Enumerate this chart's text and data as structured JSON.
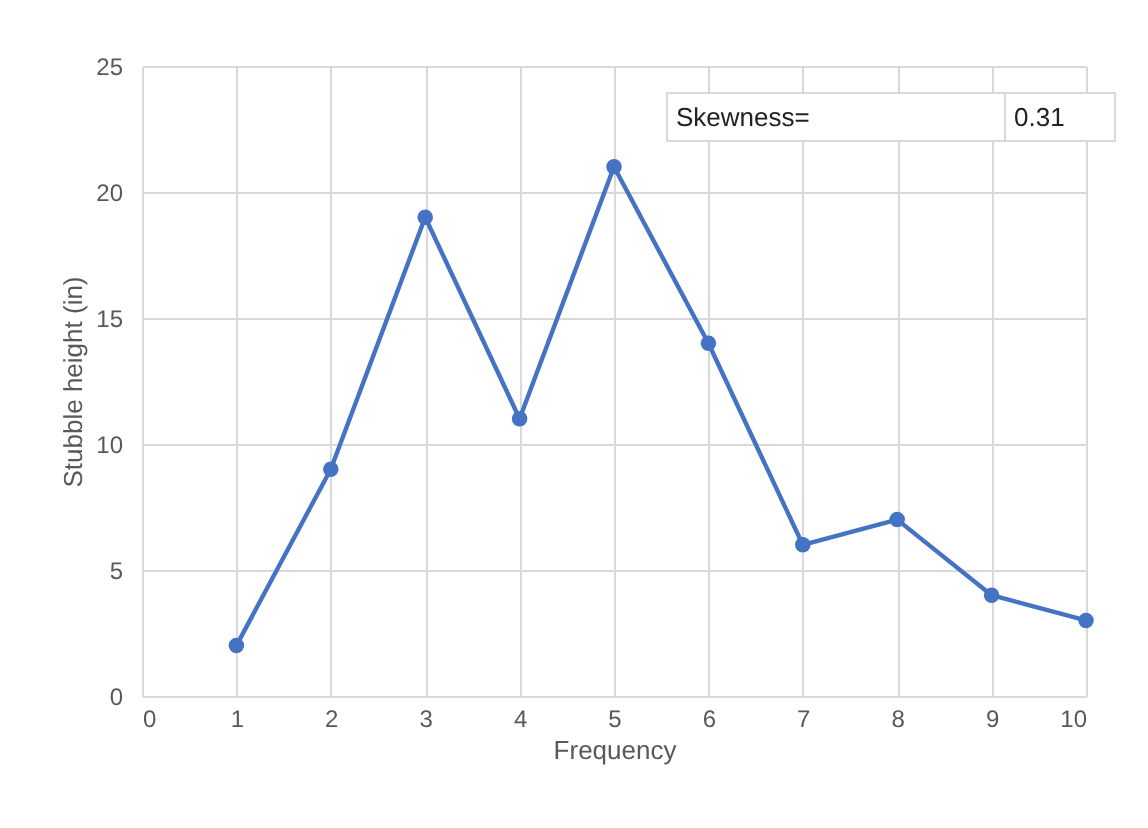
{
  "chart_data": {
    "type": "line",
    "xlabel": "Frequency",
    "ylabel": "Stubble height (in)",
    "x": [
      1,
      2,
      3,
      4,
      5,
      6,
      7,
      8,
      9,
      10
    ],
    "series": [
      {
        "color": "#4472c4",
        "values": [
          2,
          9,
          19,
          11,
          21,
          14,
          6,
          7,
          4,
          3
        ]
      }
    ],
    "xlim": [
      0,
      10
    ],
    "xticks": [
      0,
      1,
      2,
      3,
      4,
      5,
      6,
      7,
      8,
      9,
      10
    ],
    "ylim": [
      0,
      25
    ],
    "yticks": [
      0,
      5,
      10,
      15,
      20,
      25
    ],
    "grid": true,
    "marker": "circle",
    "line_style": "solid",
    "annotations": [
      "Skewness=",
      "0.31"
    ]
  }
}
